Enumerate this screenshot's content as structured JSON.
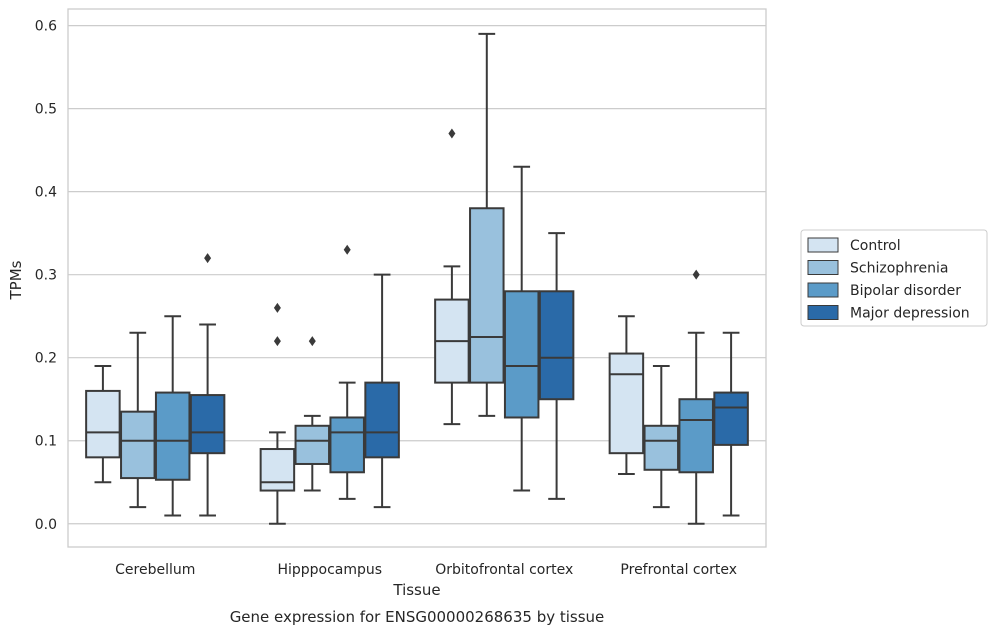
{
  "chart_data": {
    "type": "box",
    "title": "",
    "caption": "Gene expression for ENSG00000268635 by tissue",
    "xlabel": "Tissue",
    "ylabel": "TPMs",
    "ylim": [
      -0.028,
      0.62
    ],
    "yticks": [
      "0.0",
      "0.1",
      "0.2",
      "0.3",
      "0.4",
      "0.5",
      "0.6"
    ],
    "grid": "horizontal",
    "legend_position": "right",
    "categories": [
      "Cerebellum",
      "Hipppocampus",
      "Orbitofrontal cortex",
      "Prefrontal cortex"
    ],
    "series": [
      {
        "name": "Control",
        "color": "#d4e4f2",
        "boxes": [
          {
            "whislo": 0.05,
            "q1": 0.08,
            "med": 0.11,
            "q3": 0.16,
            "whishi": 0.19,
            "fliers": []
          },
          {
            "whislo": 0.0,
            "q1": 0.04,
            "med": 0.05,
            "q3": 0.09,
            "whishi": 0.11,
            "fliers": [
              0.22,
              0.26
            ]
          },
          {
            "whislo": 0.12,
            "q1": 0.17,
            "med": 0.22,
            "q3": 0.27,
            "whishi": 0.31,
            "fliers": [
              0.47
            ]
          },
          {
            "whislo": 0.06,
            "q1": 0.085,
            "med": 0.18,
            "q3": 0.205,
            "whishi": 0.25,
            "fliers": []
          }
        ]
      },
      {
        "name": "Schizophrenia",
        "color": "#99c1dd",
        "boxes": [
          {
            "whislo": 0.02,
            "q1": 0.055,
            "med": 0.1,
            "q3": 0.135,
            "whishi": 0.23,
            "fliers": []
          },
          {
            "whislo": 0.04,
            "q1": 0.072,
            "med": 0.1,
            "q3": 0.118,
            "whishi": 0.13,
            "fliers": [
              0.22
            ]
          },
          {
            "whislo": 0.13,
            "q1": 0.17,
            "med": 0.225,
            "q3": 0.38,
            "whishi": 0.59,
            "fliers": []
          },
          {
            "whislo": 0.02,
            "q1": 0.065,
            "med": 0.1,
            "q3": 0.118,
            "whishi": 0.19,
            "fliers": []
          }
        ]
      },
      {
        "name": "Bipolar disorder",
        "color": "#5b9bc8",
        "boxes": [
          {
            "whislo": 0.01,
            "q1": 0.053,
            "med": 0.1,
            "q3": 0.158,
            "whishi": 0.25,
            "fliers": []
          },
          {
            "whislo": 0.03,
            "q1": 0.062,
            "med": 0.11,
            "q3": 0.128,
            "whishi": 0.17,
            "fliers": [
              0.33
            ]
          },
          {
            "whislo": 0.04,
            "q1": 0.128,
            "med": 0.19,
            "q3": 0.28,
            "whishi": 0.43,
            "fliers": []
          },
          {
            "whislo": 0.0,
            "q1": 0.062,
            "med": 0.125,
            "q3": 0.15,
            "whishi": 0.23,
            "fliers": [
              0.3
            ]
          }
        ]
      },
      {
        "name": "Major depression",
        "color": "#2a6aa8",
        "boxes": [
          {
            "whislo": 0.01,
            "q1": 0.085,
            "med": 0.11,
            "q3": 0.155,
            "whishi": 0.24,
            "fliers": [
              0.32
            ]
          },
          {
            "whislo": 0.02,
            "q1": 0.08,
            "med": 0.11,
            "q3": 0.17,
            "whishi": 0.3,
            "fliers": []
          },
          {
            "whislo": 0.03,
            "q1": 0.15,
            "med": 0.2,
            "q3": 0.28,
            "whishi": 0.35,
            "fliers": []
          },
          {
            "whislo": 0.01,
            "q1": 0.095,
            "med": 0.14,
            "q3": 0.158,
            "whishi": 0.23,
            "fliers": []
          }
        ]
      }
    ]
  }
}
